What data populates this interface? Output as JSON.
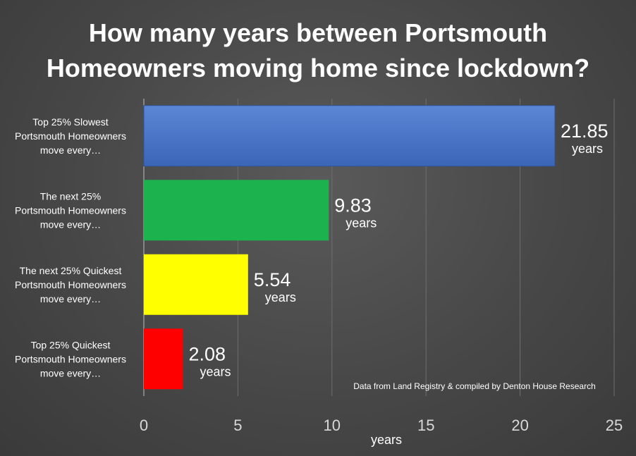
{
  "chart_data": {
    "type": "bar",
    "orientation": "horizontal",
    "title_lines": [
      "How many years between Portsmouth",
      "Homeowners moving home since lockdown?"
    ],
    "categories": [
      [
        "Top 25% Slowest",
        "Portsmouth Homeowners",
        "move every…"
      ],
      [
        "The next 25%",
        "Portsmouth Homeowners",
        "move every…"
      ],
      [
        "The next 25% Quickest",
        "Portsmouth Homeowners",
        "move every…"
      ],
      [
        "Top 25% Quickest",
        "Portsmouth Homeowners",
        "move every…"
      ]
    ],
    "values": [
      21.85,
      9.83,
      5.54,
      2.08
    ],
    "value_labels": [
      "21.85",
      "9.83",
      "5.54",
      "2.08"
    ],
    "value_unit": "years",
    "colors": [
      "#4472c4",
      "#1cb34f",
      "#ffff00",
      "#ff0000"
    ],
    "xlabel": "years",
    "xlim": [
      0,
      25
    ],
    "xticks": [
      0,
      5,
      10,
      15,
      20,
      25
    ],
    "grid": "vertical",
    "source_note": "Data from Land Registry & compiled by Denton House Research"
  }
}
